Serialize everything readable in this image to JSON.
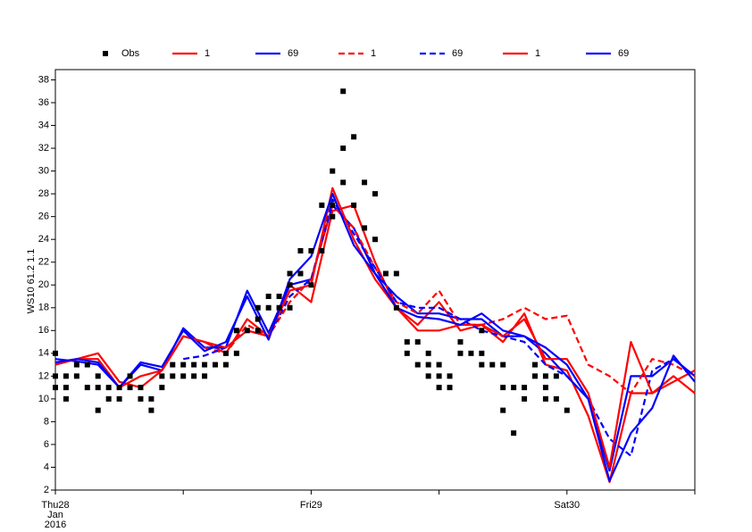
{
  "chart_data": {
    "type": "line",
    "ylabel": "WS10 61.2 1.1",
    "xlim": [
      0,
      60
    ],
    "ylim": [
      2,
      38.9
    ],
    "yticks": [
      2,
      4,
      6,
      8,
      10,
      12,
      14,
      16,
      18,
      20,
      22,
      24,
      26,
      28,
      30,
      32,
      34,
      36,
      38
    ],
    "xticks": [
      {
        "value": 0,
        "label": "Thu28\nJan\n2016"
      },
      {
        "value": 24,
        "label": "Fri29"
      },
      {
        "value": 48,
        "label": "Sat30"
      }
    ],
    "xminorticks": [
      12,
      36,
      60
    ],
    "obs": {
      "name": "Obs",
      "color": "#000000",
      "x": [
        0,
        0,
        0,
        1,
        1,
        1,
        2,
        2,
        3,
        3,
        4,
        4,
        4,
        5,
        5,
        6,
        6,
        7,
        7,
        8,
        8,
        9,
        9,
        10,
        10,
        11,
        11,
        12,
        12,
        13,
        13,
        14,
        14,
        15,
        16,
        16,
        17,
        17,
        18,
        19,
        19,
        19,
        20,
        20,
        21,
        21,
        22,
        22,
        22,
        23,
        23,
        24,
        24,
        25,
        25,
        26,
        26,
        26,
        27,
        27,
        27,
        28,
        28,
        29,
        29,
        30,
        30,
        31,
        32,
        32,
        33,
        33,
        34,
        34,
        35,
        35,
        35,
        36,
        36,
        36,
        37,
        37,
        38,
        38,
        39,
        40,
        40,
        40,
        41,
        42,
        42,
        42,
        43,
        43,
        44,
        44,
        45,
        45,
        46,
        46,
        46,
        47,
        47,
        48
      ],
      "values": [
        14,
        12,
        11,
        12,
        11,
        10,
        13,
        12,
        13,
        11,
        12,
        11,
        9,
        11,
        10,
        11,
        10,
        12,
        11,
        11,
        10,
        10,
        9,
        12,
        11,
        13,
        12,
        13,
        12,
        13,
        12,
        13,
        12,
        13,
        14,
        13,
        14,
        16,
        16,
        18,
        17,
        16,
        19,
        18,
        19,
        18,
        21,
        20,
        18,
        23,
        21,
        23,
        20,
        27,
        23,
        30,
        27,
        26,
        37,
        32,
        29,
        33,
        27,
        29,
        25,
        28,
        24,
        21,
        21,
        18,
        15,
        14,
        15,
        13,
        14,
        13,
        12,
        13,
        12,
        11,
        12,
        11,
        15,
        14,
        14,
        16,
        14,
        13,
        13,
        13,
        11,
        9,
        11,
        7,
        11,
        10,
        13,
        12,
        12,
        11,
        10,
        12,
        10,
        9
      ]
    },
    "x": [
      0,
      2,
      4,
      6,
      8,
      10,
      12,
      14,
      16,
      18,
      20,
      22,
      24,
      26,
      28,
      30,
      32,
      34,
      36,
      38,
      40,
      42,
      44,
      46,
      48,
      50,
      52,
      54,
      56,
      58,
      60
    ],
    "series": [
      {
        "name": "1",
        "color": "#ff0000",
        "dashed": false,
        "values": [
          13,
          13.5,
          14,
          11.5,
          11,
          12.5,
          15.5,
          15,
          14,
          17,
          15.5,
          20,
          18.5,
          26.5,
          27,
          22,
          18,
          16.5,
          18.5,
          16,
          16.5,
          15,
          17.5,
          13,
          12.5,
          8.5,
          2.7,
          10.5,
          10.5,
          11.5,
          12.5
        ]
      },
      {
        "name": "69",
        "color": "#0000ff",
        "dashed": false,
        "values": [
          13.5,
          13.3,
          13,
          11,
          13,
          12.5,
          16.2,
          14.5,
          14.5,
          19.5,
          15.8,
          20,
          20.5,
          27,
          25,
          21,
          19,
          17.5,
          17.5,
          17,
          17,
          15.5,
          15.5,
          14,
          12,
          10,
          3.7,
          12,
          12,
          13.5,
          12
        ]
      },
      {
        "name": "1",
        "color": "#ff0000",
        "dashed": true,
        "values": [
          null,
          null,
          null,
          null,
          null,
          null,
          null,
          14.5,
          14,
          16.5,
          15.5,
          18.5,
          20.5,
          27,
          25,
          21.5,
          18.5,
          17.5,
          19.5,
          16.5,
          16.5,
          17,
          18,
          17,
          17.3,
          13,
          12,
          10.5,
          13.5,
          13,
          12
        ]
      },
      {
        "name": "69",
        "color": "#0000ff",
        "dashed": true,
        "values": [
          null,
          null,
          null,
          null,
          null,
          null,
          13.5,
          13.8,
          14.5,
          16,
          15.5,
          19,
          20.5,
          27.5,
          24.5,
          21.5,
          18.5,
          18,
          18,
          17,
          16,
          15.5,
          15,
          13,
          12,
          10,
          6.5,
          5,
          12.5,
          13.5,
          12
        ]
      },
      {
        "name": "1",
        "color": "#ff0000",
        "dashed": false,
        "values": [
          13,
          13.5,
          13.5,
          11,
          12,
          12.5,
          15.5,
          15,
          14.5,
          16,
          15.5,
          19.5,
          20,
          28.5,
          24,
          20.5,
          18,
          16,
          16,
          16.5,
          16.5,
          15.5,
          17,
          13.5,
          13.5,
          10.5,
          4,
          15,
          10.5,
          12,
          10.5
        ]
      },
      {
        "name": "69",
        "color": "#0000ff",
        "dashed": false,
        "values": [
          13.2,
          13.5,
          13.2,
          11,
          13.2,
          12.8,
          16,
          14.2,
          15,
          19,
          15.2,
          20.5,
          22.5,
          28,
          23.5,
          21,
          18,
          17.2,
          17,
          16.5,
          17.5,
          16,
          15.5,
          14.5,
          13,
          10,
          2.8,
          7,
          9.2,
          13.8,
          11.5
        ]
      }
    ]
  }
}
